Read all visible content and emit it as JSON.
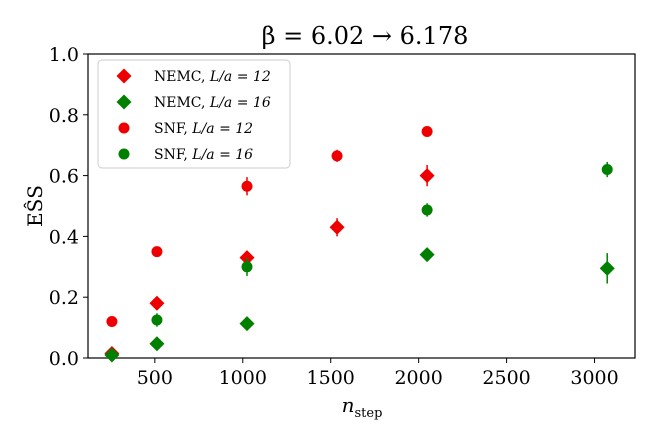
{
  "chart_data": {
    "type": "scatter",
    "title": "β = 6.02 → 6.178",
    "xlabel": "n_step",
    "xlabel_main": "n",
    "xlabel_sub": "step",
    "ylabel": "EŜS",
    "xlim": [
      120,
      3230
    ],
    "ylim": [
      0.0,
      1.0
    ],
    "xticks": [
      500,
      1000,
      1500,
      2000,
      2500,
      3000
    ],
    "yticks": [
      0.0,
      0.2,
      0.4,
      0.6,
      0.8,
      1.0
    ],
    "xtick_labels": [
      "500",
      "1000",
      "1500",
      "2000",
      "2500",
      "3000"
    ],
    "ytick_labels": [
      "0.0",
      "0.2",
      "0.4",
      "0.6",
      "0.8",
      "1.0"
    ],
    "legend_position": "top-left",
    "series": [
      {
        "name": "NEMC, L/a = 12",
        "label_prefix": "NEMC,",
        "label_math": "L/a = 12",
        "marker": "diamond",
        "color": "#ee0000",
        "points": [
          {
            "x": 256,
            "y": 0.015,
            "err": 0.008
          },
          {
            "x": 512,
            "y": 0.18,
            "err": 0.012
          },
          {
            "x": 1024,
            "y": 0.33,
            "err": 0.012
          },
          {
            "x": 1536,
            "y": 0.43,
            "err": 0.03
          },
          {
            "x": 2048,
            "y": 0.6,
            "err": 0.035
          }
        ]
      },
      {
        "name": "NEMC, L/a = 16",
        "label_prefix": "NEMC,",
        "label_math": "L/a = 16",
        "marker": "diamond",
        "color": "#008000",
        "points": [
          {
            "x": 256,
            "y": 0.01,
            "err": 0.006
          },
          {
            "x": 512,
            "y": 0.047,
            "err": 0.008
          },
          {
            "x": 1024,
            "y": 0.113,
            "err": 0.008
          },
          {
            "x": 2048,
            "y": 0.34,
            "err": 0.01
          },
          {
            "x": 3072,
            "y": 0.295,
            "err": 0.05
          }
        ]
      },
      {
        "name": "SNF, L/a = 12",
        "label_prefix": "SNF,",
        "label_math": "L/a = 12",
        "marker": "circle",
        "color": "#ee0000",
        "points": [
          {
            "x": 256,
            "y": 0.12,
            "err": 0.006
          },
          {
            "x": 512,
            "y": 0.35,
            "err": 0.008
          },
          {
            "x": 1024,
            "y": 0.565,
            "err": 0.03
          },
          {
            "x": 1536,
            "y": 0.665,
            "err": 0.02
          },
          {
            "x": 2048,
            "y": 0.745,
            "err": 0.012
          }
        ]
      },
      {
        "name": "SNF, L/a = 16",
        "label_prefix": "SNF,",
        "label_math": "L/a = 16",
        "marker": "circle",
        "color": "#008000",
        "points": [
          {
            "x": 512,
            "y": 0.125,
            "err": 0.022
          },
          {
            "x": 1024,
            "y": 0.3,
            "err": 0.03
          },
          {
            "x": 2048,
            "y": 0.487,
            "err": 0.022
          },
          {
            "x": 3072,
            "y": 0.62,
            "err": 0.025
          }
        ]
      }
    ]
  }
}
